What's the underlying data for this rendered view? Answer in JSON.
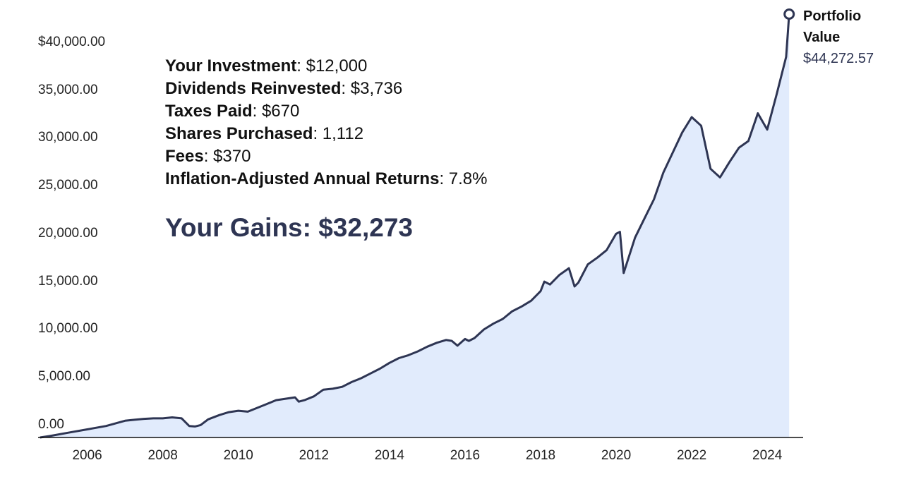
{
  "chart_data": {
    "type": "area",
    "title": "",
    "xlabel": "",
    "ylabel": "",
    "xlim": [
      2004.7,
      2024.95
    ],
    "ylim": [
      0,
      44272.57
    ],
    "y_ticks": [
      0,
      5000,
      10000,
      15000,
      20000,
      25000,
      30000,
      35000,
      40000
    ],
    "y_tick_labels": [
      "0.00",
      "5,000.00",
      "10,000.00",
      "15,000.00",
      "20,000.00",
      "25,000.00",
      "30,000.00",
      "35,000.00",
      "$40,000.00"
    ],
    "x_ticks": [
      2006,
      2008,
      2010,
      2012,
      2014,
      2016,
      2018,
      2020,
      2022,
      2024
    ],
    "x_tick_labels": [
      "2006",
      "2008",
      "2010",
      "2012",
      "2014",
      "2016",
      "2018",
      "2020",
      "2022",
      "2024"
    ],
    "grid": false,
    "series": [
      {
        "name": "Portfolio Value",
        "color": "#2e3553",
        "fill": "#e1ebfc",
        "end_value_label": "$44,272.57",
        "x": [
          2004.75,
          2005.0,
          2005.5,
          2006.0,
          2006.5,
          2007.0,
          2007.25,
          2007.5,
          2007.75,
          2008.0,
          2008.25,
          2008.5,
          2008.7,
          2008.85,
          2009.0,
          2009.2,
          2009.5,
          2009.75,
          2010.0,
          2010.25,
          2010.5,
          2010.75,
          2011.0,
          2011.25,
          2011.5,
          2011.6,
          2011.75,
          2012.0,
          2012.25,
          2012.5,
          2012.75,
          2013.0,
          2013.25,
          2013.5,
          2013.75,
          2014.0,
          2014.25,
          2014.5,
          2014.75,
          2015.0,
          2015.25,
          2015.5,
          2015.65,
          2015.8,
          2016.0,
          2016.1,
          2016.25,
          2016.5,
          2016.75,
          2017.0,
          2017.25,
          2017.5,
          2017.75,
          2018.0,
          2018.1,
          2018.25,
          2018.5,
          2018.75,
          2018.9,
          2019.0,
          2019.25,
          2019.5,
          2019.75,
          2020.0,
          2020.1,
          2020.2,
          2020.5,
          2020.75,
          2021.0,
          2021.25,
          2021.5,
          2021.75,
          2022.0,
          2022.25,
          2022.5,
          2022.75,
          2023.0,
          2023.25,
          2023.5,
          2023.75,
          2024.0,
          2024.25,
          2024.5,
          2024.58
        ],
        "y": [
          0,
          150,
          500,
          850,
          1200,
          1750,
          1850,
          1950,
          2000,
          2000,
          2100,
          2000,
          1200,
          1150,
          1300,
          1900,
          2350,
          2650,
          2800,
          2700,
          3100,
          3500,
          3900,
          4050,
          4200,
          3750,
          3900,
          4300,
          5000,
          5100,
          5300,
          5800,
          6200,
          6700,
          7200,
          7800,
          8300,
          8600,
          9000,
          9500,
          9900,
          10200,
          10100,
          9600,
          10300,
          10100,
          10400,
          11300,
          11900,
          12400,
          13200,
          13700,
          14300,
          15300,
          16300,
          16000,
          17000,
          17700,
          15800,
          16200,
          18100,
          18800,
          19600,
          21300,
          21500,
          17200,
          20900,
          22900,
          24900,
          27700,
          29800,
          31900,
          33500,
          32600,
          28100,
          27200,
          28800,
          30300,
          31000,
          33900,
          32200,
          35900,
          39800,
          44272.57
        ]
      }
    ]
  },
  "summary": {
    "rows": [
      {
        "label": "Your Investment",
        "value": ": $12,000"
      },
      {
        "label": "Dividends Reinvested",
        "value": ": $3,736"
      },
      {
        "label": "Taxes Paid",
        "value": ": $670"
      },
      {
        "label": "Shares Purchased",
        "value": ": 1,112"
      },
      {
        "label": "Fees",
        "value": ": $370"
      },
      {
        "label": "Inflation-Adjusted Annual Returns",
        "value": ": 7.8%"
      }
    ],
    "gains": "Your Gains: $32,273"
  },
  "end_label": {
    "name_line1": "Portfolio",
    "name_line2": "Value",
    "value": "$44,272.57"
  }
}
